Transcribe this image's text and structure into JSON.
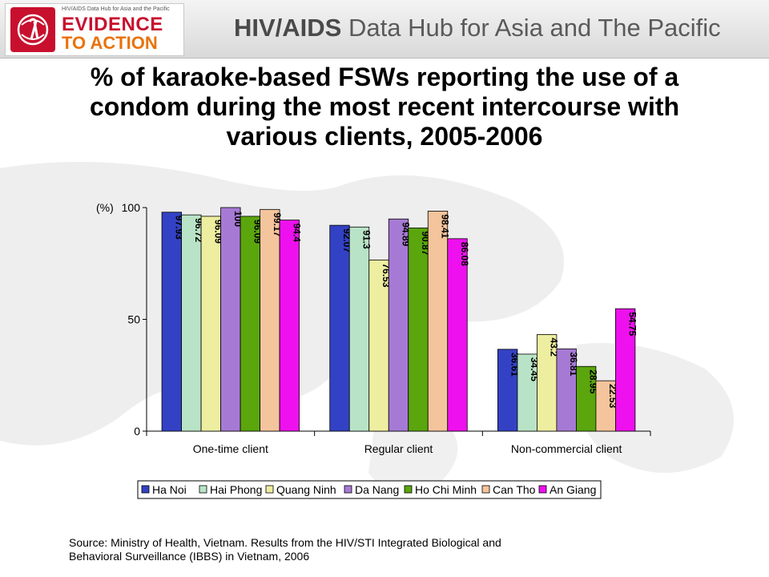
{
  "header": {
    "logo_small_text": "HIV/AIDS Data Hub for Asia and the Pacific",
    "logo_evidence": "EVIDENCE",
    "logo_to_action": "TO ACTION",
    "hub_title_bold": "HIV/AIDS",
    "hub_title_rest": " Data Hub for Asia and The Pacific"
  },
  "source_text": "Source: Ministry of Health, Vietnam. Results from the HIV/STI Integrated Biological and Behavioral Surveillance (IBBS) in Vietnam, 2006",
  "chart_data": {
    "type": "bar",
    "title": "% of karaoke-based FSWs reporting the use of a condom during the most recent intercourse with various clients, 2005-2006",
    "ylabel": "(%)",
    "ylim": [
      0,
      100
    ],
    "yticks": [
      0,
      50,
      100
    ],
    "grid": false,
    "legend_position": "bottom",
    "categories": [
      "One-time client",
      "Regular client",
      "Non-commercial client"
    ],
    "series": [
      {
        "name": "Ha Noi",
        "color": "#3342c4",
        "values": [
          97.93,
          92.07,
          36.61
        ],
        "labels": [
          "97.93",
          "92.07",
          "36.61"
        ]
      },
      {
        "name": "Hai Phong",
        "color": "#b9e3c6",
        "values": [
          96.72,
          91.3,
          34.45
        ],
        "labels": [
          "96.72",
          "91.3",
          "34.45"
        ]
      },
      {
        "name": "Quang Ninh",
        "color": "#eeeea0",
        "values": [
          96.09,
          76.53,
          43.2
        ],
        "labels": [
          "96.09",
          "76.53",
          "43.2"
        ]
      },
      {
        "name": "Da Nang",
        "color": "#a67ad4",
        "values": [
          100,
          94.89,
          36.81
        ],
        "labels": [
          "100",
          "94.89",
          "36.81"
        ]
      },
      {
        "name": "Ho Chi Minh",
        "color": "#5aa60c",
        "values": [
          96.09,
          90.87,
          28.95
        ],
        "labels": [
          "96.09",
          "90.87",
          "28.95"
        ]
      },
      {
        "name": "Can Tho",
        "color": "#f4c49c",
        "values": [
          99.17,
          98.41,
          22.53
        ],
        "labels": [
          "99.17",
          "98.41",
          "22.53"
        ]
      },
      {
        "name": "An Giang",
        "color": "#ee10ee",
        "values": [
          94.4,
          86.08,
          54.75
        ],
        "labels": [
          "94.4",
          "86.08",
          "54.75"
        ]
      }
    ]
  }
}
